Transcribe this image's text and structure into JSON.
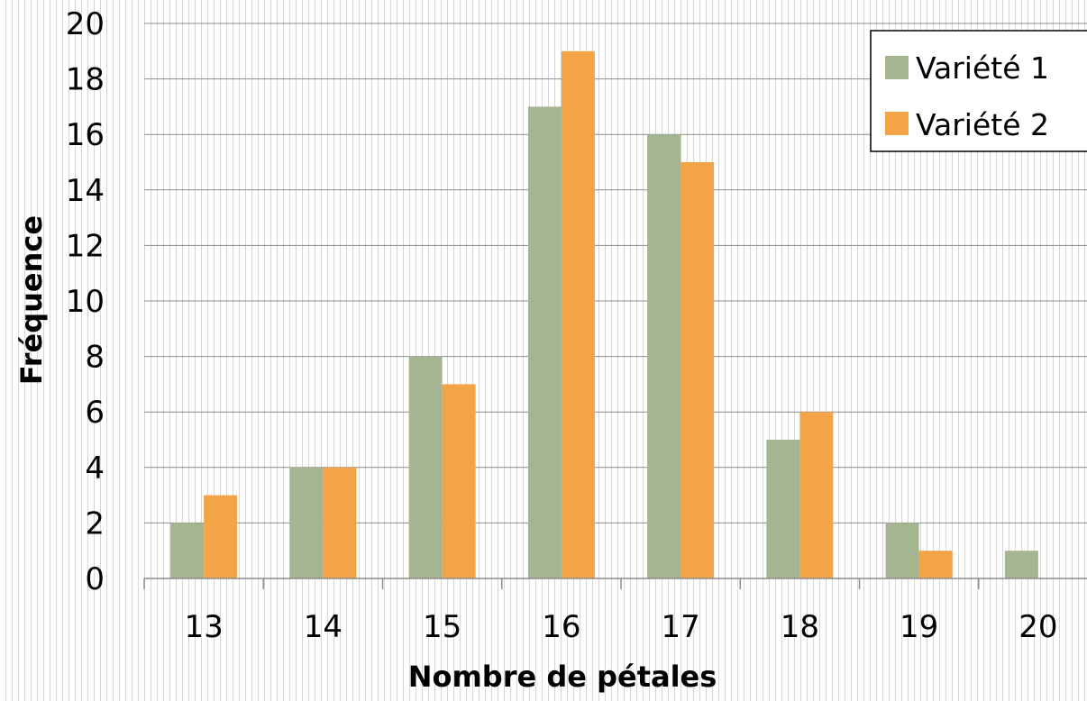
{
  "chart_data": {
    "type": "bar",
    "title": "",
    "xlabel": "Nombre de pétales",
    "ylabel": "Fréquence",
    "categories": [
      "13",
      "14",
      "15",
      "16",
      "17",
      "18",
      "19",
      "20"
    ],
    "series": [
      {
        "name": "Variété 1",
        "color": "#a5b592",
        "values": [
          2,
          4,
          8,
          17,
          16,
          5,
          2,
          1
        ]
      },
      {
        "name": "Variété 2",
        "color": "#f3a447",
        "values": [
          3,
          4,
          7,
          19,
          15,
          6,
          1,
          0
        ]
      }
    ],
    "ylim": [
      0,
      20
    ],
    "yticks": [
      "0",
      "2",
      "4",
      "6",
      "8",
      "10",
      "12",
      "14",
      "16",
      "18",
      "20"
    ],
    "grid": true,
    "legend_position": "top-right"
  }
}
